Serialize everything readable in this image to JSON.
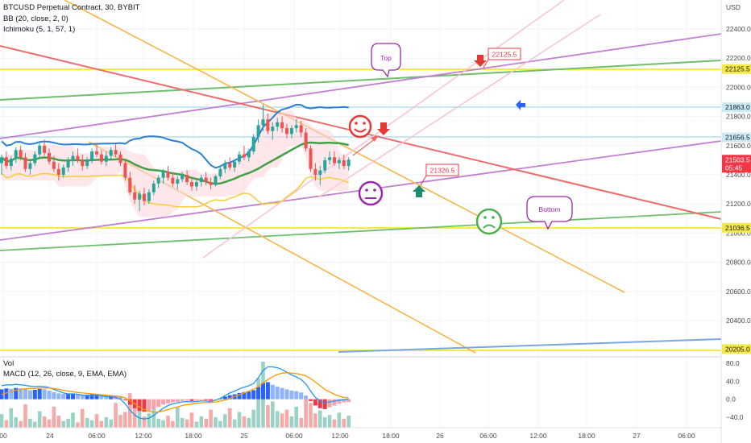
{
  "header": {
    "symbol": "BTCUSD Perpetual Contract, 30, BYBIT",
    "bb": "BB (20, close, 2, 0)",
    "ichimoku": "Ichimoku (5, 1, 57, 1)",
    "currency": "USD",
    "vol": "Vol",
    "macd": "MACD (12, 26, close, 9, EMA, EMA)"
  },
  "chart_data": {
    "type": "candlestick",
    "price_axis": {
      "ticks": [
        22400.0,
        22200.0,
        22000.0,
        21800.0,
        21600.0,
        21400.0,
        21200.0,
        21000.0,
        20800.0,
        20600.0,
        20400.0
      ],
      "ylim": [
        20200,
        22600
      ]
    },
    "macd_axis": {
      "ticks": [
        80.0,
        40.0,
        0.0,
        -40.0
      ],
      "tick_labels": [
        "80.0",
        "40.0",
        "0.0",
        "−40.0"
      ],
      "ylim": [
        -60,
        100
      ]
    },
    "time_axis": {
      "labels": [
        "00",
        "24",
        "06:00",
        "12:00",
        "18:00",
        "25",
        "06:00",
        "12:00",
        "18:00",
        "26",
        "06:00",
        "12:00",
        "18:00",
        "27",
        "06:00"
      ],
      "bar_index": [
        0,
        96,
        192,
        288,
        384,
        480,
        576,
        672,
        768,
        864,
        960,
        1056,
        1152,
        1248,
        1344
      ]
    },
    "price_labels": [
      {
        "label": "22125.5",
        "value": 22125.5,
        "color": "#f5e94a",
        "text_color": "#131722"
      },
      {
        "label": "21863.0",
        "value": 21863.0,
        "color": "#cde9f2",
        "text_color": "#131722"
      },
      {
        "label": "21656.5",
        "value": 21656.5,
        "color": "#cde9f2",
        "text_color": "#131722"
      },
      {
        "label": "21503.5",
        "value": 21503.5,
        "color": "#f23645",
        "text_color": "#ffffff",
        "sub": "05:45"
      },
      {
        "label": "21036.5",
        "value": 21036.5,
        "color": "#f5e94a",
        "text_color": "#131722"
      },
      {
        "label": "20205.0",
        "value": 20205.0,
        "color": "#f5e94a",
        "text_color": "#131722"
      }
    ],
    "annotations": [
      {
        "text": "Top",
        "kind": "callout",
        "color": "#9c27b0"
      },
      {
        "text": "Bottom",
        "kind": "callout",
        "color": "#9c27b0"
      },
      {
        "text": "22125.5",
        "kind": "price-note",
        "color": "#f23645"
      },
      {
        "text": "21326.5",
        "kind": "price-note",
        "color": "#f23645"
      }
    ],
    "candles": [
      [
        21480,
        21540,
        21400,
        21520
      ],
      [
        21520,
        21560,
        21440,
        21460
      ],
      [
        21460,
        21530,
        21430,
        21510
      ],
      [
        21510,
        21590,
        21480,
        21570
      ],
      [
        21570,
        21600,
        21500,
        21520
      ],
      [
        21520,
        21550,
        21420,
        21440
      ],
      [
        21440,
        21500,
        21400,
        21480
      ],
      [
        21480,
        21560,
        21460,
        21540
      ],
      [
        21540,
        21620,
        21510,
        21600
      ],
      [
        21600,
        21640,
        21530,
        21550
      ],
      [
        21550,
        21580,
        21470,
        21490
      ],
      [
        21490,
        21530,
        21420,
        21440
      ],
      [
        21440,
        21480,
        21360,
        21400
      ],
      [
        21400,
        21470,
        21380,
        21450
      ],
      [
        21450,
        21520,
        21420,
        21500
      ],
      [
        21500,
        21560,
        21460,
        21530
      ],
      [
        21530,
        21580,
        21480,
        21500
      ],
      [
        21500,
        21540,
        21430,
        21460
      ],
      [
        21460,
        21520,
        21440,
        21500
      ],
      [
        21500,
        21580,
        21480,
        21560
      ],
      [
        21560,
        21620,
        21520,
        21540
      ],
      [
        21540,
        21570,
        21470,
        21490
      ],
      [
        21490,
        21560,
        21460,
        21530
      ],
      [
        21530,
        21590,
        21500,
        21570
      ],
      [
        21570,
        21610,
        21520,
        21540
      ],
      [
        21540,
        21560,
        21460,
        21480
      ],
      [
        21480,
        21500,
        21360,
        21380
      ],
      [
        21380,
        21420,
        21260,
        21280
      ],
      [
        21280,
        21330,
        21200,
        21230
      ],
      [
        21230,
        21290,
        21150,
        21270
      ],
      [
        21270,
        21310,
        21190,
        21220
      ],
      [
        21220,
        21300,
        21200,
        21280
      ],
      [
        21280,
        21360,
        21260,
        21340
      ],
      [
        21340,
        21400,
        21310,
        21380
      ],
      [
        21380,
        21440,
        21340,
        21420
      ],
      [
        21420,
        21460,
        21360,
        21380
      ],
      [
        21380,
        21420,
        21320,
        21340
      ],
      [
        21340,
        21390,
        21300,
        21370
      ],
      [
        21370,
        21420,
        21350,
        21400
      ],
      [
        21400,
        21430,
        21330,
        21350
      ],
      [
        21350,
        21380,
        21290,
        21320
      ],
      [
        21320,
        21370,
        21290,
        21350
      ],
      [
        21350,
        21400,
        21320,
        21380
      ],
      [
        21380,
        21420,
        21330,
        21350
      ],
      [
        21350,
        21380,
        21300,
        21330
      ],
      [
        21330,
        21400,
        21320,
        21390
      ],
      [
        21390,
        21460,
        21370,
        21440
      ],
      [
        21440,
        21500,
        21410,
        21480
      ],
      [
        21480,
        21520,
        21430,
        21450
      ],
      [
        21450,
        21500,
        21420,
        21490
      ],
      [
        21490,
        21560,
        21470,
        21540
      ],
      [
        21540,
        21600,
        21500,
        21520
      ],
      [
        21520,
        21580,
        21490,
        21560
      ],
      [
        21560,
        21680,
        21540,
        21660
      ],
      [
        21660,
        21780,
        21620,
        21740
      ],
      [
        21740,
        21880,
        21700,
        21780
      ],
      [
        21780,
        21820,
        21680,
        21700
      ],
      [
        21700,
        21760,
        21640,
        21730
      ],
      [
        21730,
        21790,
        21700,
        21760
      ],
      [
        21760,
        21800,
        21690,
        21720
      ],
      [
        21720,
        21750,
        21650,
        21680
      ],
      [
        21680,
        21740,
        21650,
        21720
      ],
      [
        21720,
        21780,
        21690,
        21740
      ],
      [
        21740,
        21770,
        21660,
        21690
      ],
      [
        21690,
        21720,
        21560,
        21580
      ],
      [
        21580,
        21600,
        21420,
        21440
      ],
      [
        21440,
        21480,
        21360,
        21400
      ],
      [
        21400,
        21460,
        21330,
        21430
      ],
      [
        21430,
        21520,
        21410,
        21500
      ],
      [
        21500,
        21560,
        21470,
        21520
      ],
      [
        21520,
        21560,
        21460,
        21480
      ],
      [
        21480,
        21520,
        21440,
        21500
      ],
      [
        21500,
        21540,
        21440,
        21460
      ],
      [
        21460,
        21520,
        21430,
        21503.5
      ]
    ],
    "volume": [
      18,
      10,
      26,
      14,
      9,
      31,
      12,
      8,
      22,
      15,
      11,
      28,
      16,
      9,
      12,
      20,
      7,
      25,
      13,
      10,
      18,
      9,
      14,
      11,
      33,
      17,
      21,
      46,
      28,
      23,
      15,
      19,
      30,
      12,
      10,
      16,
      9,
      27,
      13,
      11,
      20,
      8,
      15,
      12,
      24,
      14,
      9,
      18,
      26,
      11,
      21,
      15,
      13,
      24,
      66,
      88,
      30,
      35,
      22,
      19,
      24,
      15,
      28,
      13,
      38,
      33,
      19,
      23,
      14,
      17,
      11,
      20,
      12,
      16
    ],
    "macd_hist": [
      22,
      24,
      23,
      25,
      24,
      22,
      20,
      21,
      23,
      22,
      19,
      16,
      13,
      12,
      12,
      13,
      12,
      10,
      10,
      11,
      12,
      10,
      9,
      9,
      8,
      5,
      -2,
      -12,
      -20,
      -26,
      -28,
      -26,
      -22,
      -17,
      -12,
      -9,
      -7,
      -6,
      -4,
      -3,
      -4,
      -3,
      -2,
      -2,
      -3,
      -1,
      2,
      6,
      9,
      11,
      14,
      16,
      17,
      20,
      27,
      36,
      38,
      32,
      28,
      25,
      22,
      19,
      18,
      15,
      8,
      -4,
      -14,
      -20,
      -22,
      -18,
      -14,
      -10,
      -7,
      -6
    ],
    "macd_line": [
      30,
      32,
      32,
      33,
      32,
      31,
      29,
      28,
      29,
      28,
      26,
      22,
      18,
      14,
      12,
      12,
      11,
      9,
      8,
      8,
      9,
      8,
      6,
      5,
      4,
      0,
      -10,
      -24,
      -35,
      -42,
      -44,
      -42,
      -36,
      -28,
      -20,
      -14,
      -10,
      -8,
      -6,
      -5,
      -6,
      -5,
      -4,
      -4,
      -5,
      -2,
      2,
      8,
      14,
      18,
      23,
      27,
      30,
      35,
      48,
      64,
      72,
      72,
      70,
      66,
      60,
      54,
      50,
      44,
      34,
      18,
      4,
      -4,
      -8,
      -6,
      -4,
      -2,
      -1,
      0
    ],
    "signal_line": [
      10,
      14,
      17,
      20,
      22,
      23,
      24,
      24,
      25,
      25,
      25,
      24,
      22,
      20,
      18,
      17,
      15,
      14,
      13,
      12,
      11,
      10,
      9,
      8,
      7,
      6,
      3,
      -3,
      -10,
      -17,
      -23,
      -27,
      -29,
      -28,
      -26,
      -23,
      -20,
      -17,
      -14,
      -12,
      -11,
      -9,
      -8,
      -7,
      -7,
      -6,
      -4,
      -2,
      2,
      6,
      10,
      14,
      18,
      22,
      28,
      36,
      44,
      50,
      55,
      58,
      59,
      58,
      57,
      55,
      52,
      46,
      38,
      30,
      22,
      16,
      11,
      7,
      4,
      3
    ]
  }
}
